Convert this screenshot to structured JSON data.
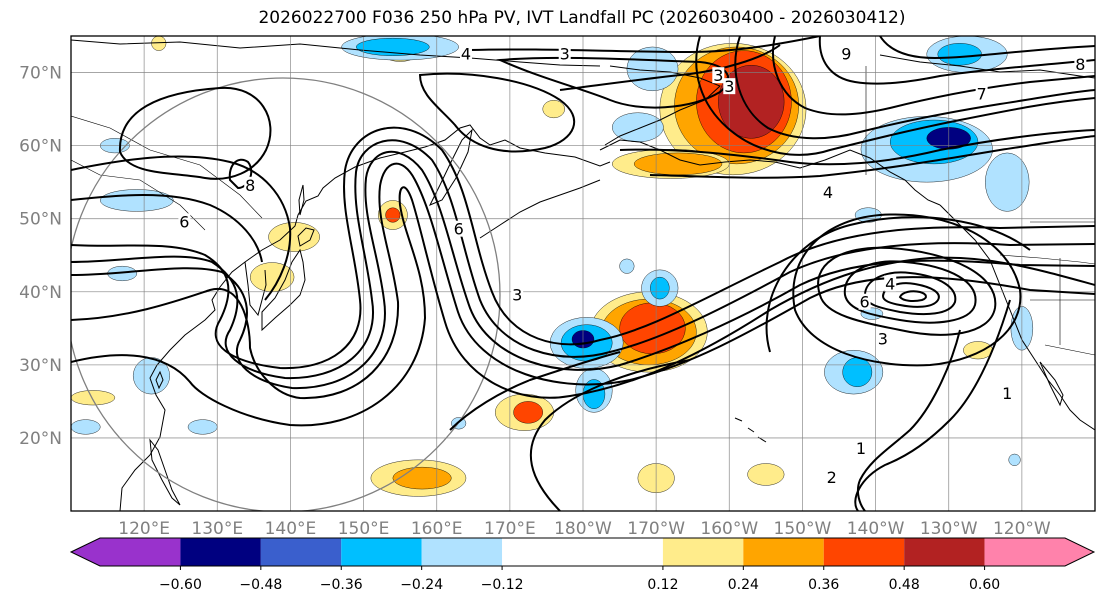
{
  "title": "2026022700 F036 250 hPa PV, IVT Landfall PC (2026030400 - 2026030412)",
  "map": {
    "lon_range": [
      110,
      250
    ],
    "lat_range": [
      10,
      75
    ],
    "lat_ticks": [
      {
        "value": 20,
        "label": "20°N"
      },
      {
        "value": 30,
        "label": "30°N"
      },
      {
        "value": 40,
        "label": "40°N"
      },
      {
        "value": 50,
        "label": "50°N"
      },
      {
        "value": 60,
        "label": "60°N"
      },
      {
        "value": 70,
        "label": "70°N"
      }
    ],
    "lon_ticks": [
      {
        "value": 120,
        "label": "120°E"
      },
      {
        "value": 130,
        "label": "130°E"
      },
      {
        "value": 140,
        "label": "140°E"
      },
      {
        "value": 150,
        "label": "150°E"
      },
      {
        "value": 160,
        "label": "160°E"
      },
      {
        "value": 170,
        "label": "170°E"
      },
      {
        "value": 180,
        "label": "180°W"
      },
      {
        "value": 190,
        "label": "170°W"
      },
      {
        "value": 200,
        "label": "160°W"
      },
      {
        "value": 210,
        "label": "150°W"
      },
      {
        "value": 220,
        "label": "140°W"
      },
      {
        "value": 230,
        "label": "130°W"
      },
      {
        "value": 240,
        "label": "120°W"
      }
    ],
    "contour_labels": [
      {
        "text": "8",
        "lon": 134.5,
        "lat": 54.5
      },
      {
        "text": "6",
        "lon": 125.5,
        "lat": 49.5
      },
      {
        "text": "6",
        "lon": 163,
        "lat": 48.5
      },
      {
        "text": "3",
        "lon": 171,
        "lat": 39.5
      },
      {
        "text": "3",
        "lon": 200,
        "lat": 68.0
      },
      {
        "text": "3",
        "lon": 177.5,
        "lat": 72.5
      },
      {
        "text": "3",
        "lon": 198.5,
        "lat": 69.5
      },
      {
        "text": "4",
        "lon": 164,
        "lat": 72.5
      },
      {
        "text": "4",
        "lon": 213.5,
        "lat": 53.5
      },
      {
        "text": "9",
        "lon": 216,
        "lat": 72.5
      },
      {
        "text": "7",
        "lon": 234.5,
        "lat": 67.0
      },
      {
        "text": "8",
        "lon": 248,
        "lat": 71.0
      },
      {
        "text": "4",
        "lon": 222,
        "lat": 41.0
      },
      {
        "text": "6",
        "lon": 218.5,
        "lat": 38.5
      },
      {
        "text": "3",
        "lon": 221,
        "lat": 33.5
      },
      {
        "text": "1",
        "lon": 238,
        "lat": 26.0
      },
      {
        "text": "1",
        "lon": 218,
        "lat": 18.5
      },
      {
        "text": "2",
        "lon": 214,
        "lat": 14.5
      }
    ]
  },
  "colorbar": {
    "ticks": [
      "−0.60",
      "−0.48",
      "−0.36",
      "−0.24",
      "−0.12",
      "0.12",
      "0.24",
      "0.36",
      "0.48",
      "0.60"
    ],
    "tick_values": [
      -0.6,
      -0.48,
      -0.36,
      -0.24,
      -0.12,
      0.12,
      0.24,
      0.36,
      0.48,
      0.6
    ],
    "range": [
      -0.72,
      0.72
    ],
    "colors": [
      "#9932cc",
      "#000080",
      "#3a5fcd",
      "#00bfff",
      "#b0e2ff",
      "#ffffff",
      "#ffec8b",
      "#ffa500",
      "#ff4500",
      "#b22222",
      "#ff82ab"
    ]
  },
  "fills": [
    {
      "level": 1,
      "lon": 189,
      "lat": 34.5,
      "rx": 8,
      "ry": 5.5
    },
    {
      "level": 2,
      "lon": 189,
      "lat": 34.5,
      "rx": 6.5,
      "ry": 4.5
    },
    {
      "level": 3,
      "lon": 189.5,
      "lat": 35,
      "rx": 4.5,
      "ry": 3.5
    },
    {
      "level": 1,
      "lon": 200.5,
      "lat": 65,
      "rx": 10,
      "ry": 9
    },
    {
      "level": 2,
      "lon": 201,
      "lat": 65.5,
      "rx": 8.5,
      "ry": 8
    },
    {
      "level": 3,
      "lon": 202,
      "lat": 66,
      "rx": 6.5,
      "ry": 7
    },
    {
      "level": 4,
      "lon": 203,
      "lat": 66,
      "rx": 4.5,
      "ry": 5
    },
    {
      "level": 1,
      "lon": 192,
      "lat": 57.5,
      "rx": 8,
      "ry": 2
    },
    {
      "level": 2,
      "lon": 193,
      "lat": 57.5,
      "rx": 6,
      "ry": 1.5
    },
    {
      "level": 1,
      "lon": 155,
      "lat": 73.5,
      "rx": 3,
      "ry": 2
    },
    {
      "level": 1,
      "lon": 154,
      "lat": 50.5,
      "rx": 2,
      "ry": 2
    },
    {
      "level": 3,
      "lon": 154,
      "lat": 50.5,
      "rx": 1,
      "ry": 1
    },
    {
      "level": 1,
      "lon": 172,
      "lat": 23.5,
      "rx": 4,
      "ry": 2.5
    },
    {
      "level": 3,
      "lon": 172.5,
      "lat": 23.5,
      "rx": 2,
      "ry": 1.5
    },
    {
      "level": 1,
      "lon": 157.5,
      "lat": 14.5,
      "rx": 6.5,
      "ry": 2.5
    },
    {
      "level": 2,
      "lon": 158,
      "lat": 14.5,
      "rx": 4,
      "ry": 1.5
    },
    {
      "level": 1,
      "lon": 190,
      "lat": 14.5,
      "rx": 2.5,
      "ry": 2
    },
    {
      "level": 1,
      "lon": 122,
      "lat": 74,
      "rx": 1,
      "ry": 1
    },
    {
      "level": 1,
      "lon": 140.5,
      "lat": 47.5,
      "rx": 3.5,
      "ry": 2
    },
    {
      "level": 1,
      "lon": 137.5,
      "lat": 42.0,
      "rx": 3,
      "ry": 2
    },
    {
      "level": 1,
      "lon": 113,
      "lat": 25.5,
      "rx": 3,
      "ry": 1
    },
    {
      "level": 1,
      "lon": 205,
      "lat": 15,
      "rx": 2.5,
      "ry": 1.5
    },
    {
      "level": 1,
      "lon": 234,
      "lat": 32,
      "rx": 2,
      "ry": 1.2
    },
    {
      "level": 1,
      "lon": 176,
      "lat": 65,
      "rx": 1.5,
      "ry": 1.2
    },
    {
      "level": -1,
      "lon": 180.5,
      "lat": 33,
      "rx": 5,
      "ry": 3.5
    },
    {
      "level": -2,
      "lon": 180.5,
      "lat": 33,
      "rx": 3.5,
      "ry": 2.5
    },
    {
      "level": -4,
      "lon": 180,
      "lat": 33.5,
      "rx": 1.5,
      "ry": 1.2
    },
    {
      "level": -1,
      "lon": 181.5,
      "lat": 26.5,
      "rx": 2.5,
      "ry": 3
    },
    {
      "level": -2,
      "lon": 181.5,
      "lat": 26,
      "rx": 1.5,
      "ry": 2
    },
    {
      "level": -1,
      "lon": 227,
      "lat": 59.5,
      "rx": 9,
      "ry": 4.5
    },
    {
      "level": -2,
      "lon": 228,
      "lat": 60.5,
      "rx": 6,
      "ry": 3
    },
    {
      "level": -4,
      "lon": 230,
      "lat": 61,
      "rx": 3,
      "ry": 1.5
    },
    {
      "level": -1,
      "lon": 238,
      "lat": 55,
      "rx": 3,
      "ry": 4
    },
    {
      "level": -1,
      "lon": 232.5,
      "lat": 72.5,
      "rx": 5.5,
      "ry": 2.5
    },
    {
      "level": -2,
      "lon": 231.5,
      "lat": 72.5,
      "rx": 3,
      "ry": 1.5
    },
    {
      "level": -1,
      "lon": 155,
      "lat": 73.5,
      "rx": 8,
      "ry": 1.8
    },
    {
      "level": -2,
      "lon": 154,
      "lat": 73.5,
      "rx": 5,
      "ry": 1.2
    },
    {
      "level": -1,
      "lon": 189.5,
      "lat": 70.5,
      "rx": 3.5,
      "ry": 3
    },
    {
      "level": -1,
      "lon": 187.5,
      "lat": 62.5,
      "rx": 3.5,
      "ry": 2
    },
    {
      "level": -1,
      "lon": 119,
      "lat": 52.5,
      "rx": 5,
      "ry": 1.5
    },
    {
      "level": -1,
      "lon": 116,
      "lat": 60,
      "rx": 2,
      "ry": 1
    },
    {
      "level": -1,
      "lon": 117,
      "lat": 42.5,
      "rx": 2,
      "ry": 1
    },
    {
      "level": -1,
      "lon": 121,
      "lat": 28.5,
      "rx": 2.5,
      "ry": 2.5
    },
    {
      "level": -1,
      "lon": 190.5,
      "lat": 40.5,
      "rx": 2.5,
      "ry": 2.5
    },
    {
      "level": -2,
      "lon": 190.5,
      "lat": 40.5,
      "rx": 1.3,
      "ry": 1.5
    },
    {
      "level": -1,
      "lon": 217,
      "lat": 29,
      "rx": 4,
      "ry": 3
    },
    {
      "level": -2,
      "lon": 217.5,
      "lat": 29,
      "rx": 2,
      "ry": 2
    },
    {
      "level": -1,
      "lon": 240,
      "lat": 35,
      "rx": 1.5,
      "ry": 3
    },
    {
      "level": -1,
      "lon": 186,
      "lat": 43.5,
      "rx": 1,
      "ry": 1
    },
    {
      "level": -1,
      "lon": 219,
      "lat": 50.5,
      "rx": 1.8,
      "ry": 1
    },
    {
      "level": -1,
      "lon": 112,
      "lat": 21.5,
      "rx": 2,
      "ry": 1
    },
    {
      "level": -1,
      "lon": 128,
      "lat": 21.5,
      "rx": 2,
      "ry": 1
    },
    {
      "level": -1,
      "lon": 219.5,
      "lat": 37,
      "rx": 1.5,
      "ry": 0.8
    },
    {
      "level": -1,
      "lon": 163,
      "lat": 22,
      "rx": 1,
      "ry": 0.8
    },
    {
      "level": -1,
      "lon": 239,
      "lat": 17,
      "rx": 0.8,
      "ry": 0.8
    }
  ]
}
